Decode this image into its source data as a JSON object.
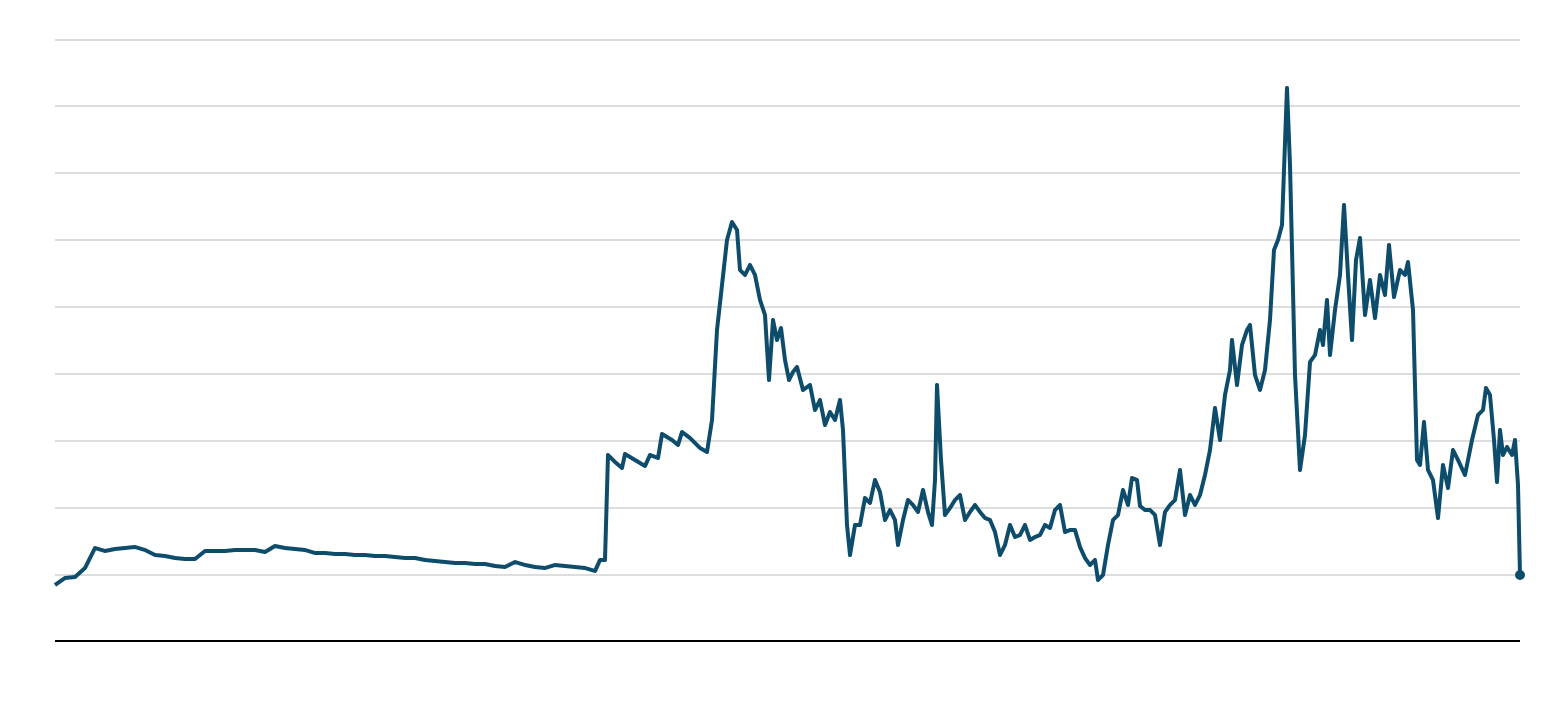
{
  "chart_data": {
    "type": "line",
    "color": "#0d4d6b",
    "grid": true,
    "xlim": [
      0,
      1465
    ],
    "ylim": [
      -66,
      535
    ],
    "yticks": [
      0,
      67,
      134,
      201,
      268,
      335,
      402,
      469,
      535
    ],
    "x": [
      0,
      10,
      20,
      30,
      40,
      50,
      60,
      70,
      80,
      90,
      100,
      110,
      120,
      130,
      140,
      150,
      160,
      170,
      180,
      190,
      200,
      210,
      220,
      230,
      240,
      250,
      260,
      270,
      280,
      290,
      300,
      310,
      320,
      330,
      340,
      350,
      360,
      370,
      380,
      390,
      400,
      410,
      420,
      430,
      440,
      450,
      460,
      470,
      480,
      490,
      500,
      510,
      520,
      530,
      540,
      545,
      550,
      553,
      560,
      567,
      570,
      580,
      590,
      595,
      603,
      607,
      617,
      623,
      627,
      635,
      645,
      652,
      657,
      662,
      667,
      672,
      677,
      682,
      685,
      690,
      695,
      700,
      705,
      710,
      714,
      718,
      722,
      726,
      730,
      734,
      738,
      742,
      748,
      755,
      760,
      765,
      770,
      775,
      780,
      785,
      788,
      792,
      795,
      800,
      805,
      810,
      815,
      820,
      825,
      830,
      835,
      840,
      843,
      848,
      853,
      858,
      863,
      868,
      873,
      877,
      880,
      882,
      886,
      890,
      895,
      900,
      905,
      910,
      915,
      920,
      925,
      930,
      935,
      940,
      945,
      950,
      955,
      960,
      965,
      970,
      975,
      980,
      985,
      990,
      995,
      1000,
      1005,
      1010,
      1015,
      1020,
      1025,
      1030,
      1035,
      1040,
      1043,
      1048,
      1053,
      1058,
      1063,
      1068,
      1073,
      1077,
      1082,
      1085,
      1090,
      1095,
      1100,
      1105,
      1110,
      1115,
      1120,
      1125,
      1130,
      1135,
      1140,
      1145,
      1150,
      1155,
      1160,
      1165,
      1170,
      1175,
      1177,
      1182,
      1187,
      1192,
      1195,
      1200,
      1205,
      1210,
      1215,
      1219,
      1223,
      1227,
      1232,
      1235,
      1240,
      1245,
      1250,
      1255,
      1260,
      1265,
      1268,
      1272,
      1275,
      1280,
      1285,
      1289,
      1293,
      1297,
      1301,
      1305,
      1310,
      1315,
      1320,
      1325,
      1330,
      1334,
      1339,
      1345,
      1350,
      1353,
      1358,
      1362,
      1365,
      1369,
      1373,
      1378,
      1383,
      1388,
      1393,
      1398,
      1403,
      1410,
      1417,
      1423,
      1428,
      1431,
      1435,
      1439,
      1442,
      1445,
      1448,
      1452,
      1457,
      1460,
      1463,
      1465
    ],
    "values": [
      -10,
      -3,
      -2,
      7,
      27,
      24,
      26,
      27,
      28,
      25,
      20,
      19,
      17,
      16,
      16,
      24,
      24,
      24,
      25,
      25,
      25,
      23,
      29,
      27,
      26,
      25,
      22,
      22,
      21,
      21,
      20,
      20,
      19,
      19,
      18,
      17,
      17,
      15,
      14,
      13,
      12,
      12,
      11,
      11,
      9,
      8,
      13,
      10,
      8,
      7,
      10,
      9,
      8,
      7,
      4,
      15,
      15,
      120,
      113,
      107,
      121,
      115,
      109,
      120,
      117,
      141,
      135,
      130,
      143,
      137,
      127,
      123,
      155,
      245,
      290,
      335,
      353,
      345,
      305,
      300,
      310,
      300,
      275,
      260,
      195,
      255,
      235,
      247,
      215,
      195,
      203,
      208,
      185,
      190,
      165,
      175,
      150,
      163,
      155,
      175,
      145,
      50,
      20,
      50,
      50,
      77,
      72,
      95,
      83,
      55,
      65,
      55,
      30,
      55,
      75,
      70,
      63,
      85,
      63,
      50,
      95,
      190,
      115,
      60,
      67,
      75,
      80,
      55,
      63,
      70,
      63,
      57,
      55,
      43,
      20,
      30,
      50,
      38,
      40,
      50,
      35,
      38,
      40,
      50,
      47,
      65,
      70,
      43,
      45,
      45,
      28,
      17,
      10,
      15,
      -5,
      0,
      30,
      55,
      60,
      85,
      70,
      97,
      95,
      69,
      65,
      65,
      60,
      30,
      63,
      70,
      75,
      105,
      60,
      80,
      70,
      80,
      100,
      125,
      167,
      135,
      180,
      205,
      235,
      190,
      230,
      245,
      250,
      200,
      185,
      205,
      255,
      325,
      335,
      350,
      487,
      410,
      200,
      105,
      140,
      213,
      220,
      245,
      230,
      275,
      220,
      265,
      300,
      370,
      300,
      235,
      315,
      337,
      260,
      295,
      257,
      300,
      280,
      330,
      278,
      305,
      300,
      313,
      265,
      115,
      110,
      153,
      105,
      95,
      57,
      110,
      87,
      125,
      115,
      100,
      135,
      160,
      165,
      187,
      180,
      135,
      93,
      145,
      120,
      128,
      120,
      135,
      90,
      0
    ]
  }
}
